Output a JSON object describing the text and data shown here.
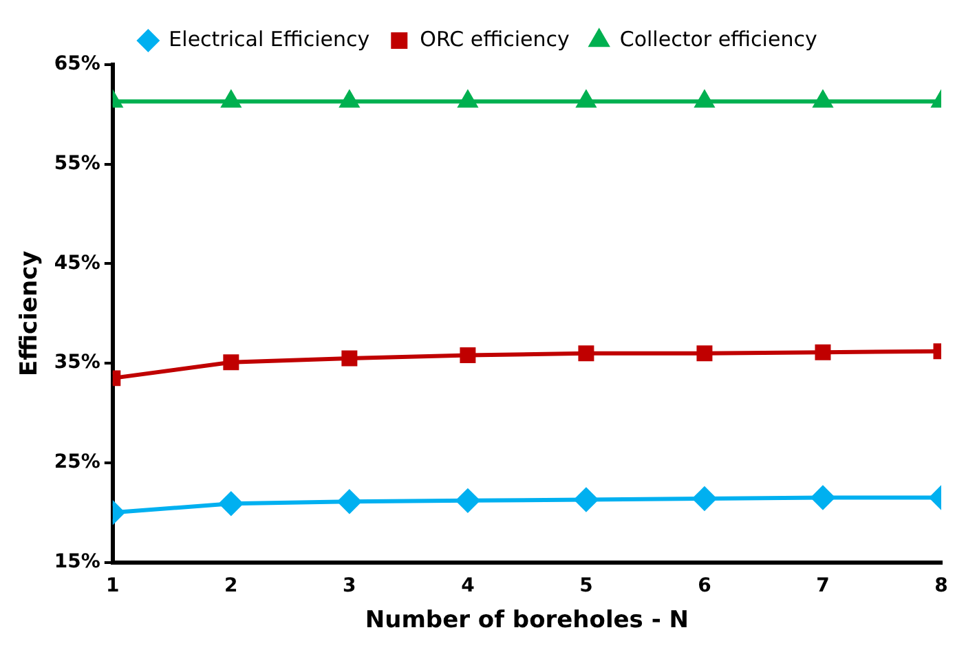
{
  "chart_data": {
    "type": "line",
    "xlabel": "Number of boreholes - N",
    "ylabel": "Efficiency",
    "x": [
      1,
      2,
      3,
      4,
      5,
      6,
      7,
      8
    ],
    "series": [
      {
        "name": "Electrical Efficiency",
        "color": "#00b0f0",
        "marker": "diamond",
        "values": [
          20.0,
          20.9,
          21.1,
          21.2,
          21.3,
          21.4,
          21.5,
          21.5
        ]
      },
      {
        "name": "ORC efficiency",
        "color": "#c00000",
        "marker": "square",
        "values": [
          33.5,
          35.1,
          35.5,
          35.8,
          36.0,
          36.0,
          36.1,
          36.2
        ]
      },
      {
        "name": "Collector efficiency",
        "color": "#00b050",
        "marker": "triangle",
        "values": [
          61.3,
          61.3,
          61.3,
          61.3,
          61.3,
          61.3,
          61.3,
          61.3
        ]
      }
    ],
    "xlim": [
      1,
      8
    ],
    "xticks": [
      1,
      2,
      3,
      4,
      5,
      6,
      7,
      8
    ],
    "ylim": [
      15,
      65
    ],
    "yticks": [
      {
        "value": 15,
        "label": "15%"
      },
      {
        "value": 25,
        "label": "25%"
      },
      {
        "value": 35,
        "label": "35%"
      },
      {
        "value": 45,
        "label": "45%"
      },
      {
        "value": 55,
        "label": "55%"
      },
      {
        "value": 65,
        "label": "65%"
      }
    ],
    "grid": false,
    "legend": "top",
    "line_style": "solid"
  }
}
